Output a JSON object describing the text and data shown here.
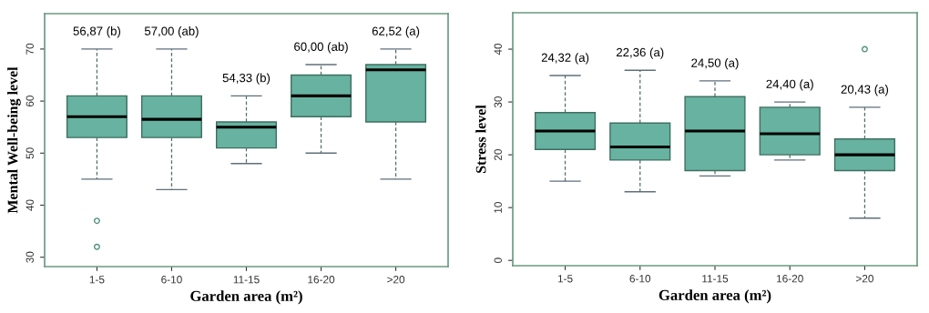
{
  "chart_data": [
    {
      "type": "box",
      "xlabel": "Garden area (m²)",
      "ylabel": "Mental Well-being level",
      "categories": [
        "1-5",
        "6-10",
        "11-15",
        "16-20",
        ">20"
      ],
      "color": "#67b2a0",
      "ylim": [
        28.2,
        76.8
      ],
      "yticks": [
        30,
        40,
        50,
        60,
        70
      ],
      "grid": false,
      "legend": false,
      "boxes": [
        {
          "low": 45,
          "q1": 53,
          "median": 57,
          "q3": 61,
          "high": 70,
          "outliers": [
            37,
            32
          ]
        },
        {
          "low": 43,
          "q1": 53,
          "median": 56.5,
          "q3": 61,
          "high": 70
        },
        {
          "low": 48,
          "q1": 51,
          "median": 55,
          "q3": 56,
          "high": 61
        },
        {
          "low": 50,
          "q1": 57,
          "median": 61,
          "q3": 65,
          "high": 67
        },
        {
          "low": 45,
          "q1": 56,
          "median": 66,
          "q3": 67,
          "high": 70
        }
      ],
      "annotations": [
        "56,87 (b)",
        "57,00 (ab)",
        "54,33 (b)",
        "60,00 (ab)",
        "62,52 (a)"
      ]
    },
    {
      "type": "box",
      "xlabel": "Garden area (m²)",
      "ylabel": "Stress level",
      "categories": [
        "1-5",
        "6-10",
        "11-15",
        "16-20",
        ">20"
      ],
      "color": "#67b2a0",
      "ylim": [
        -1.0,
        46.9
      ],
      "yticks": [
        0,
        10,
        20,
        30,
        40
      ],
      "grid": false,
      "legend": false,
      "boxes": [
        {
          "low": 15,
          "q1": 21,
          "median": 24.5,
          "q3": 28,
          "high": 35
        },
        {
          "low": 13,
          "q1": 19,
          "median": 21.5,
          "q3": 26,
          "high": 36
        },
        {
          "low": 16,
          "q1": 17,
          "median": 24.5,
          "q3": 31,
          "high": 34
        },
        {
          "low": 19,
          "q1": 20,
          "median": 24,
          "q3": 29,
          "high": 30
        },
        {
          "low": 8,
          "q1": 17,
          "median": 20,
          "q3": 23,
          "high": 29,
          "outliers": [
            40
          ]
        }
      ],
      "annotations": [
        "24,32 (a)",
        "22,36 (a)",
        "24,50 (a)",
        "24,40 (a)",
        "20,43 (a)"
      ]
    }
  ]
}
